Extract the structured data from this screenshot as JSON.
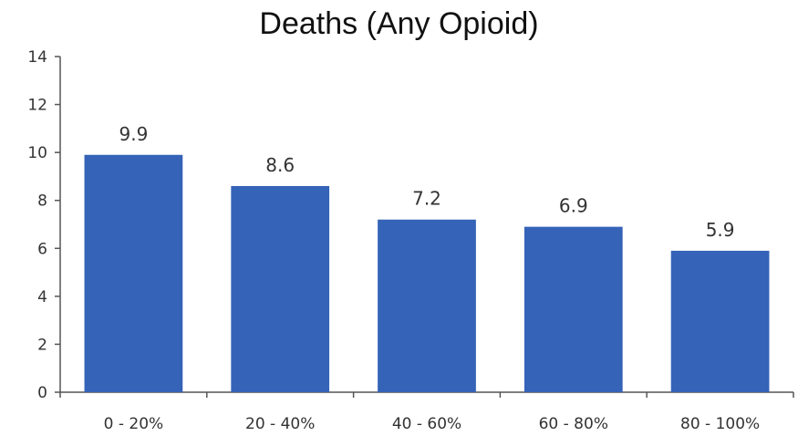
{
  "chart_data": {
    "type": "bar",
    "title": "Deaths (Any Opioid)",
    "xlabel": "",
    "ylabel": "",
    "categories": [
      "0 - 20%",
      "20 - 40%",
      "40 - 60%",
      "60 - 80%",
      "80 - 100%"
    ],
    "values": [
      9.9,
      8.6,
      7.2,
      6.9,
      5.9
    ],
    "data_labels": [
      "9.9",
      "8.6",
      "7.2",
      "6.9",
      "5.9"
    ],
    "ylim": [
      0,
      14
    ],
    "yticks": [
      0,
      2,
      4,
      6,
      8,
      10,
      12,
      14
    ],
    "grid": false,
    "legend": "none",
    "bar_color": "#3563B8"
  }
}
